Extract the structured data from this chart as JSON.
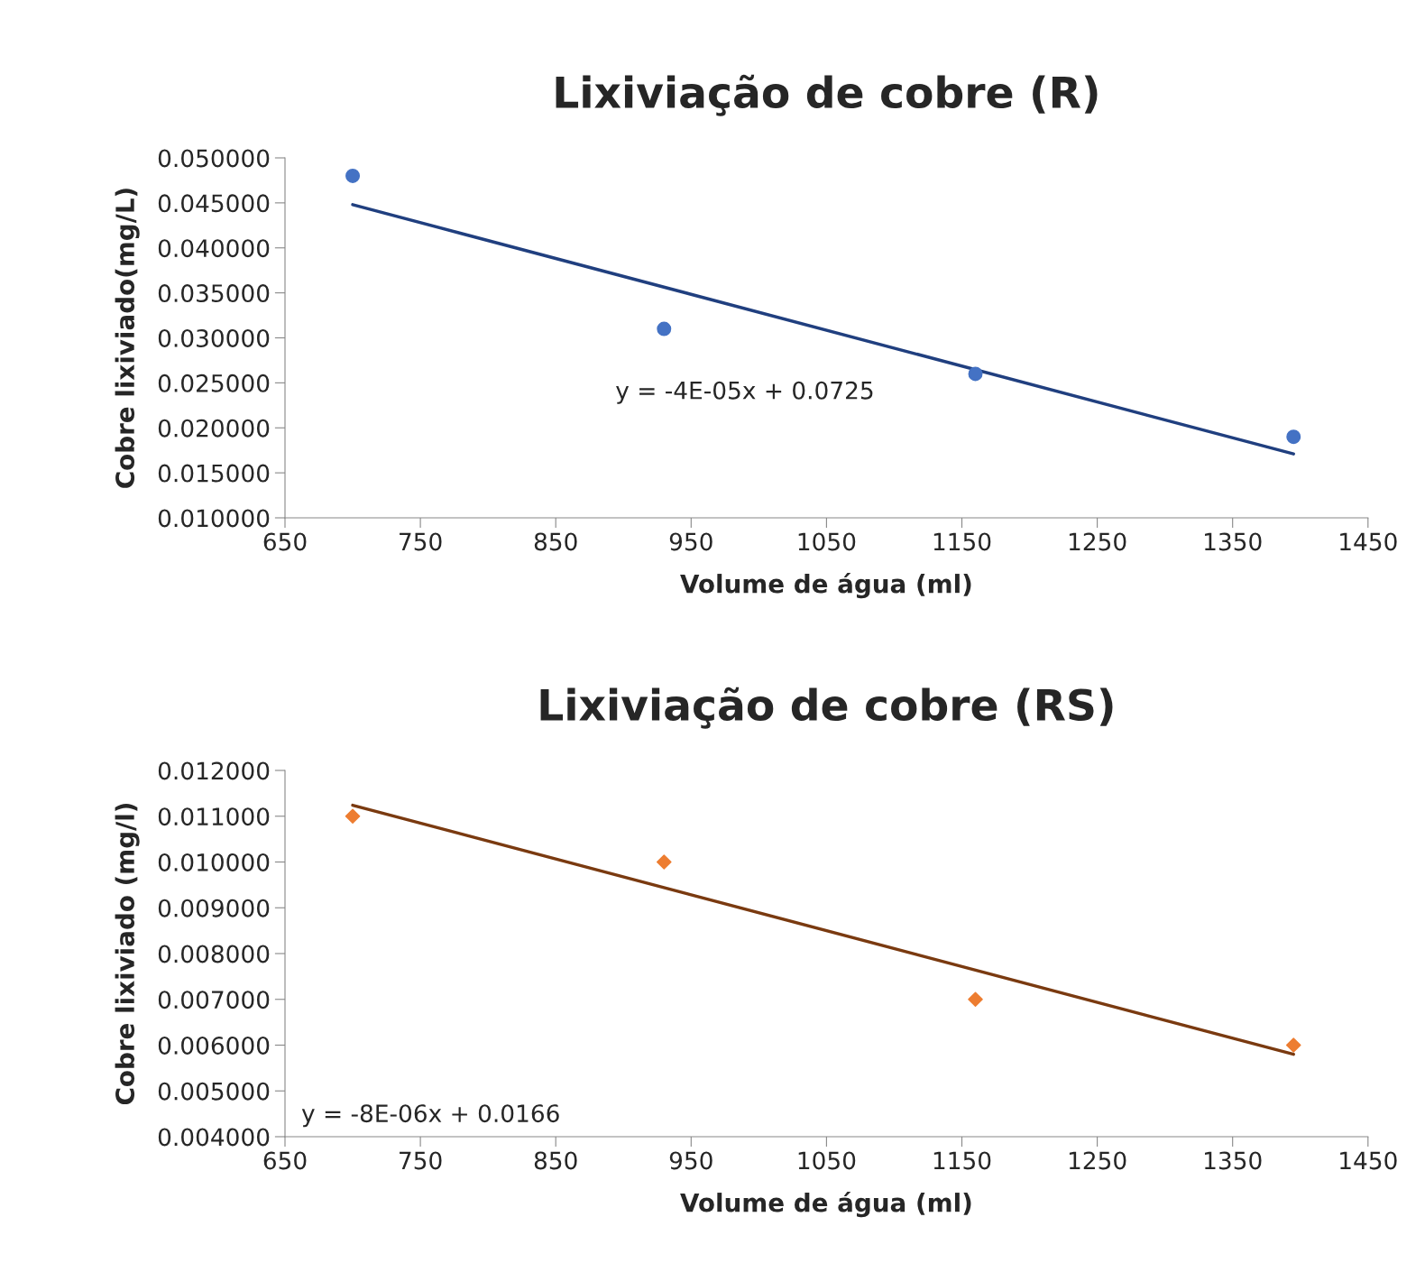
{
  "chart_data": [
    {
      "type": "scatter",
      "title": "Lixiviação de cobre (R)",
      "xlabel": "Volume de água (ml)",
      "ylabel": "Cobre lixiviado(mg/L)",
      "xlim": [
        650,
        1450
      ],
      "xticks": [
        650,
        750,
        850,
        950,
        1050,
        1150,
        1250,
        1350,
        1450
      ],
      "ylim": [
        0.01,
        0.05
      ],
      "yticks": [
        {
          "value": 0.01,
          "label": "0.010000"
        },
        {
          "value": 0.015,
          "label": "0.015000"
        },
        {
          "value": 0.02,
          "label": "0.020000"
        },
        {
          "value": 0.025,
          "label": "0.025000"
        },
        {
          "value": 0.03,
          "label": "0.030000"
        },
        {
          "value": 0.035,
          "label": "0.035000"
        },
        {
          "value": 0.04,
          "label": "0.040000"
        },
        {
          "value": 0.045,
          "label": "0.045000"
        },
        {
          "value": 0.05,
          "label": "0.050000"
        }
      ],
      "grid": false,
      "legend": false,
      "series": [
        {
          "type": "scatter",
          "color": "#4472c4",
          "marker": "circle",
          "x": [
            700,
            930,
            1160,
            1395
          ],
          "values": [
            0.048,
            0.031,
            0.026,
            0.019
          ]
        },
        {
          "type": "line",
          "color": "#203f7f",
          "marker": "none",
          "x": [
            700,
            1395
          ],
          "values": [
            0.0448,
            0.0171
          ]
        }
      ],
      "annotations": [
        "y = -4E-05x + 0.0725"
      ]
    },
    {
      "type": "scatter",
      "title": "Lixiviação de cobre (RS)",
      "xlabel": "Volume de água (ml)",
      "ylabel": "Cobre lixiviado (mg/l)",
      "xlim": [
        650,
        1450
      ],
      "xticks": [
        650,
        750,
        850,
        950,
        1050,
        1150,
        1250,
        1350,
        1450
      ],
      "ylim": [
        0.004,
        0.012
      ],
      "yticks": [
        {
          "value": 0.004,
          "label": "0.004000"
        },
        {
          "value": 0.005,
          "label": "0.005000"
        },
        {
          "value": 0.006,
          "label": "0.006000"
        },
        {
          "value": 0.007,
          "label": "0.007000"
        },
        {
          "value": 0.008,
          "label": "0.008000"
        },
        {
          "value": 0.009,
          "label": "0.009000"
        },
        {
          "value": 0.01,
          "label": "0.010000"
        },
        {
          "value": 0.011,
          "label": "0.011000"
        },
        {
          "value": 0.012,
          "label": "0.012000"
        }
      ],
      "grid": false,
      "legend": false,
      "series": [
        {
          "type": "scatter",
          "color": "#ed7d31",
          "marker": "diamond",
          "x": [
            700,
            930,
            1160,
            1395
          ],
          "values": [
            0.011,
            0.01,
            0.007,
            0.006
          ]
        },
        {
          "type": "line",
          "color": "#7a3a10",
          "marker": "none",
          "x": [
            700,
            1395
          ],
          "values": [
            0.01124,
            0.0058
          ]
        }
      ],
      "annotations": [
        "y = -8E-06x + 0.0166"
      ]
    }
  ]
}
